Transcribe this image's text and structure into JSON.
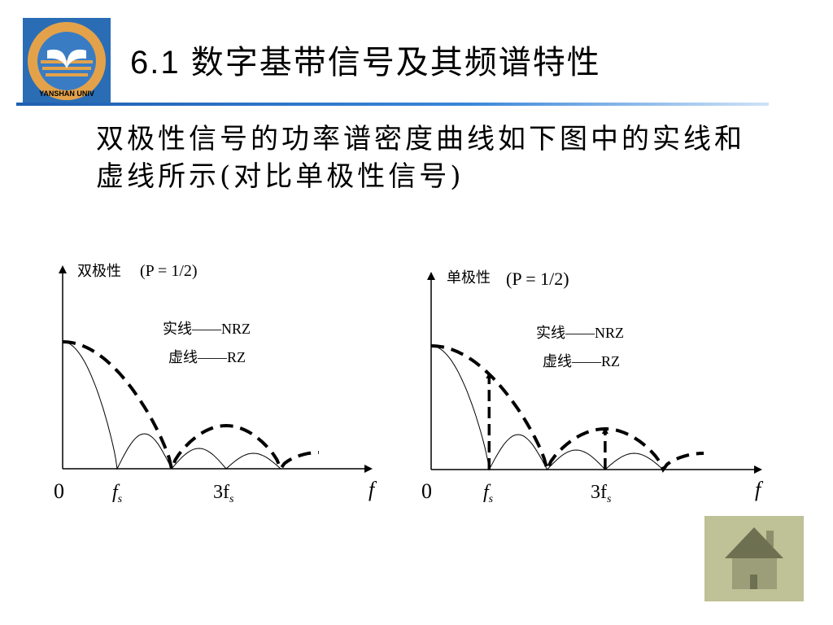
{
  "header": {
    "title": "6.1 数字基带信号及其频谱特性",
    "logo_text": "YANSHAN UNIVERSITY"
  },
  "body_text": "双极性信号的功率谱密度曲线如下图中的实线和虚线所示(对比单极性信号)",
  "figures": [
    {
      "label": "双极性",
      "param": "(P = 1/2)",
      "legend_solid": "实线——NRZ",
      "legend_dashed": "虚线——RZ",
      "x_ticks": {
        "origin": "0",
        "fs": "f",
        "fs_sub": "s",
        "three_fs": "3f",
        "three_fs_sub": "s",
        "axis": "f"
      }
    },
    {
      "label": "单极性",
      "param": "(P = 1/2)",
      "legend_solid": "实线——NRZ",
      "legend_dashed": "虚线——RZ",
      "x_ticks": {
        "origin": "0",
        "fs": "f",
        "fs_sub": "s",
        "three_fs": "3f",
        "three_fs_sub": "s",
        "axis": "f"
      }
    }
  ],
  "nav": {
    "home_icon": "home-icon"
  },
  "colors": {
    "rule": "#3a86d8",
    "logo_bg": "#2a6db5",
    "home_bg": "#bfc196",
    "home_fg": "#6e7052"
  }
}
